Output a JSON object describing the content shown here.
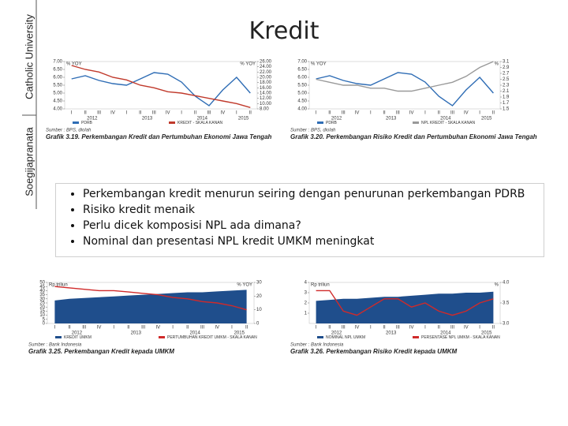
{
  "side_labels": {
    "university": "Catholic University",
    "name": "Soegijapranata"
  },
  "title": "Kredit",
  "bullets": [
    "Perkembangan kredit menurun seiring dengan penurunan perkembangan PDRB",
    "Risiko kredit menaik",
    "Perlu dicek komposisi NPL ada dimana?",
    "Nominal dan presentasi NPL kredit UMKM meningkat"
  ],
  "chart_data": [
    {
      "type": "line",
      "caption": "Grafik 3.19. Perkembangan Kredit dan Pertumbuhan Ekonomi Jawa Tengah",
      "source": "Sumber : BPS, diolah",
      "y_unit": "% YOY",
      "y2_unit": "% YOY",
      "categories": [
        "I",
        "II",
        "III",
        "IV",
        "I",
        "II",
        "III",
        "IV",
        "I",
        "II",
        "III",
        "IV",
        "I",
        "II"
      ],
      "years": [
        "2012",
        "2013",
        "2014",
        "2015"
      ],
      "ylim": [
        4,
        7
      ],
      "yticks": [
        {
          "value": 4,
          "label": "4.00"
        },
        {
          "value": 4.5,
          "label": "4.50"
        },
        {
          "value": 5,
          "label": "5.00"
        },
        {
          "value": 5.5,
          "label": "5.50"
        },
        {
          "value": 6,
          "label": "6.00"
        },
        {
          "value": 6.5,
          "label": "6.50"
        },
        {
          "value": 7,
          "label": "7.00"
        }
      ],
      "y2lim": [
        8,
        26
      ],
      "y2ticks": [
        {
          "value": 8,
          "label": "8.00"
        },
        {
          "value": 10,
          "label": "10.00"
        },
        {
          "value": 12,
          "label": "12.00"
        },
        {
          "value": 14,
          "label": "14.00"
        },
        {
          "value": 16,
          "label": "16.00"
        },
        {
          "value": 18,
          "label": "18.00"
        },
        {
          "value": 20,
          "label": "20.00"
        },
        {
          "value": 22,
          "label": "22.00"
        },
        {
          "value": 24,
          "label": "24.00"
        },
        {
          "value": 26,
          "label": "26.00"
        }
      ],
      "series": [
        {
          "name": "PDRB",
          "color": "#2f6db5",
          "style": "line",
          "values": [
            5.9,
            6.1,
            5.8,
            5.6,
            5.5,
            5.9,
            6.3,
            6.2,
            5.7,
            4.8,
            4.2,
            5.2,
            6.0,
            5.0
          ]
        },
        {
          "name": "KREDIT - SKALA KANAN",
          "color": "#c0392b",
          "style": "line",
          "axis": "y2",
          "values": [
            24.5,
            23,
            22,
            20,
            19,
            17,
            16,
            14.5,
            14,
            13,
            12,
            11,
            10,
            8.5
          ]
        }
      ]
    },
    {
      "type": "line",
      "caption": "Grafik 3.20. Perkembangan Risiko Kredit dan Pertumbuhan Ekonomi Jawa Tengah",
      "source": "Sumber : BPS, diolah",
      "y_unit": "% YOY",
      "y2_unit": "%",
      "categories": [
        "I",
        "II",
        "III",
        "IV",
        "I",
        "II",
        "III",
        "IV",
        "I",
        "II",
        "III",
        "IV",
        "I",
        "II"
      ],
      "years": [
        "2012",
        "2013",
        "2014",
        "2015"
      ],
      "ylim": [
        4,
        7
      ],
      "yticks": [
        {
          "value": 4,
          "label": "4.00"
        },
        {
          "value": 4.5,
          "label": "4.50"
        },
        {
          "value": 5,
          "label": "5.00"
        },
        {
          "value": 5.5,
          "label": "5.50"
        },
        {
          "value": 6,
          "label": "6.00"
        },
        {
          "value": 6.5,
          "label": "6.50"
        },
        {
          "value": 7,
          "label": "7.00"
        }
      ],
      "y2lim": [
        1.5,
        3.1
      ],
      "y2ticks": [
        1.5,
        1.7,
        1.9,
        2.1,
        2.3,
        2.5,
        2.7,
        2.9,
        3.1
      ],
      "series": [
        {
          "name": "PDRB",
          "color": "#2f6db5",
          "style": "line",
          "values": [
            5.9,
            6.1,
            5.8,
            5.6,
            5.5,
            5.9,
            6.3,
            6.2,
            5.7,
            4.8,
            4.2,
            5.2,
            6.0,
            5.0
          ]
        },
        {
          "name": "NPL KREDIT - SKALA KANAN",
          "color": "#999999",
          "style": "line",
          "axis": "y2",
          "values": [
            2.5,
            2.4,
            2.3,
            2.3,
            2.2,
            2.2,
            2.1,
            2.1,
            2.2,
            2.3,
            2.4,
            2.6,
            2.9,
            3.1
          ]
        }
      ]
    },
    {
      "type": "area",
      "caption": "Grafik 3.25. Perkembangan Kredit kepada UMKM",
      "source": "Sumber : Bank Indonesia",
      "y_unit": "Rp triliun",
      "y2_unit": "% YOY",
      "categories": [
        "I",
        "II",
        "III",
        "IV",
        "I",
        "II",
        "III",
        "IV",
        "I",
        "II",
        "III",
        "IV",
        "I",
        "II"
      ],
      "years": [
        "2012",
        "2013",
        "2014",
        "2015"
      ],
      "ylim": [
        0,
        50
      ],
      "yticks": [
        0,
        5,
        10,
        15,
        20,
        25,
        30,
        35,
        40,
        45,
        50
      ],
      "y2lim": [
        0,
        30
      ],
      "y2ticks": [
        0,
        10,
        20,
        30
      ],
      "series": [
        {
          "name": "KREDIT UMKM",
          "color": "#1f4e8c",
          "style": "area",
          "values": [
            28,
            30,
            31,
            32,
            33,
            34,
            35,
            36,
            37,
            38,
            38,
            39,
            40,
            41
          ]
        },
        {
          "name": "PERTUMBUHAN KREDIT UMKM - SKALA KANAN",
          "color": "#d02a2a",
          "style": "line",
          "axis": "y2",
          "values": [
            27,
            26,
            25,
            24,
            24,
            23,
            22,
            21,
            19,
            18,
            16,
            15,
            13,
            10
          ]
        }
      ]
    },
    {
      "type": "area",
      "caption": "Grafik 3.26. Perkembangan Risiko Kredit kepada UMKM",
      "source": "Sumber : Bank Indonesia",
      "y_unit": "Rp triliun",
      "y2_unit": "%",
      "categories": [
        "I",
        "II",
        "III",
        "IV",
        "I",
        "II",
        "III",
        "IV",
        "I",
        "II",
        "III",
        "IV",
        "I",
        "II"
      ],
      "years": [
        "2012",
        "2013",
        "2014",
        "2015"
      ],
      "ylim": [
        0,
        4
      ],
      "yticks": [
        1,
        2,
        3,
        4
      ],
      "y2lim": [
        3,
        4
      ],
      "y2ticks": [
        {
          "value": 3,
          "label": "3.0"
        },
        {
          "value": 3.5,
          "label": "3.5"
        },
        {
          "value": 4,
          "label": "4.0"
        }
      ],
      "series": [
        {
          "name": "NOMINAL NPL UMKM",
          "color": "#1f4e8c",
          "style": "area",
          "values": [
            2.2,
            2.3,
            2.4,
            2.4,
            2.5,
            2.6,
            2.6,
            2.7,
            2.8,
            2.9,
            2.9,
            3.0,
            3.0,
            3.1
          ]
        },
        {
          "name": "PERSENTASE NPL UMKM - SKALA KANAN",
          "color": "#d02a2a",
          "style": "line",
          "axis": "y2",
          "values": [
            3.8,
            3.8,
            3.3,
            3.2,
            3.4,
            3.6,
            3.6,
            3.4,
            3.5,
            3.3,
            3.2,
            3.3,
            3.5,
            3.6
          ]
        }
      ]
    }
  ]
}
